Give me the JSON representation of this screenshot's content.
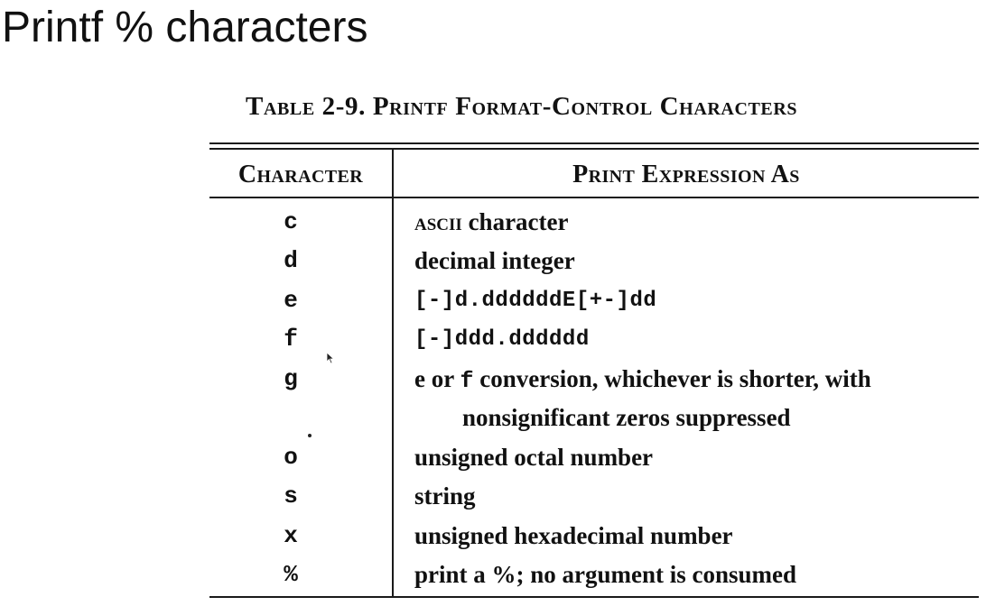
{
  "slide": {
    "title": "Printf % characters"
  },
  "table": {
    "caption": "Table 2-9. Printf Format-Control Characters",
    "headers": {
      "character": "Character",
      "expression": "Print Expression As"
    },
    "rows": [
      {
        "char": "c",
        "desc_sc": "ascii",
        "desc_rest": " character"
      },
      {
        "char": "d",
        "desc": "decimal integer"
      },
      {
        "char": "e",
        "desc": "[-]d.ddddddE[+-]dd"
      },
      {
        "char": "f",
        "desc": "[-]ddd.dddddd"
      },
      {
        "char": "g",
        "desc_lead": "e",
        "desc_mid": " or ",
        "desc_code": "f",
        "desc_tail": " conversion, whichever is shorter, with",
        "desc_line2": "nonsignificant zeros suppressed"
      },
      {
        "char": "o",
        "desc": "unsigned octal number"
      },
      {
        "char": "s",
        "desc": "string"
      },
      {
        "char": "x",
        "desc": "unsigned hexadecimal number"
      },
      {
        "char": "%",
        "desc": "print a %; no argument is consumed"
      }
    ]
  }
}
